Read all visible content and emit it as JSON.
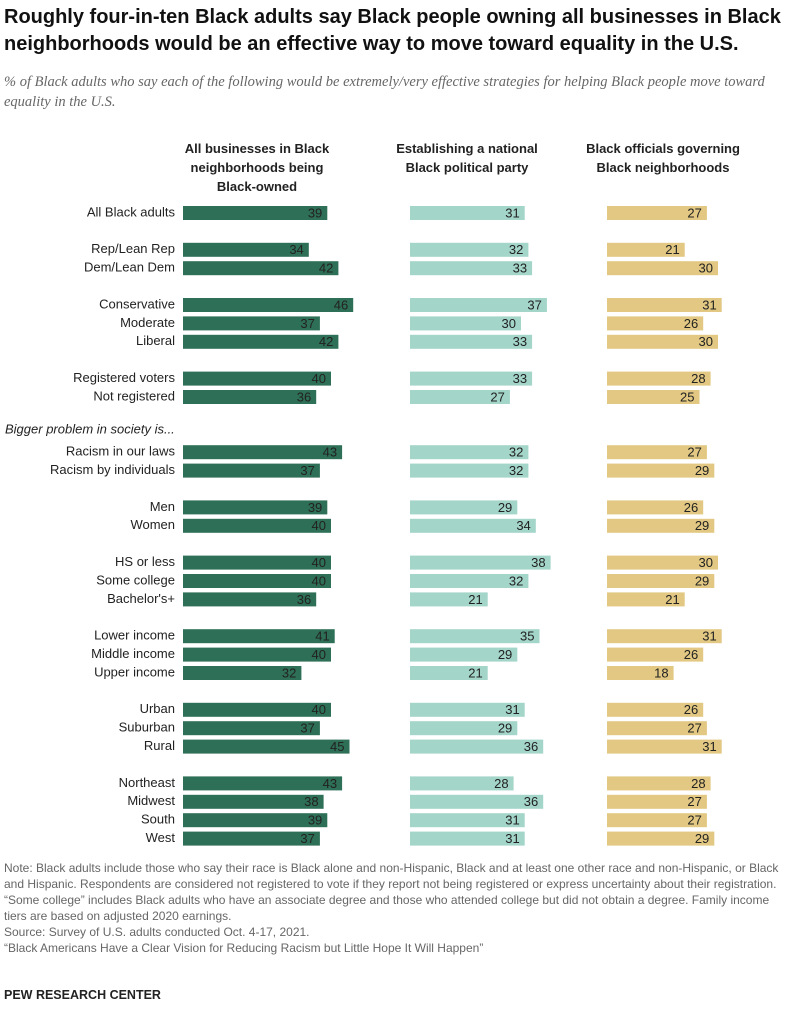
{
  "chart_data": {
    "type": "bar",
    "orientation": "horizontal",
    "title": "Roughly four-in-ten Black adults say Black people owning all businesses in Black neighborhoods would be an effective way to move toward equality in the U.S.",
    "subtitle": "% of Black adults who say each of the following would be extremely/very effective strategies for helping Black people move toward equality in the U.S.",
    "annotation": "Bigger problem in society is...",
    "categories": [
      "All Black adults",
      "Rep/Lean Rep",
      "Dem/Lean Dem",
      "Conservative",
      "Moderate",
      "Liberal",
      "Registered voters",
      "Not registered",
      "Racism in our laws",
      "Racism by individuals",
      "Men",
      "Women",
      "HS or less",
      "Some college",
      "Bachelor's+",
      "Lower income",
      "Middle income",
      "Upper income",
      "Urban",
      "Suburban",
      "Rural",
      "Northeast",
      "Midwest",
      "South",
      "West"
    ],
    "series": [
      {
        "name": "All businesses in Black neighborhoods being Black-owned",
        "color": "#2e6f57",
        "values": [
          39,
          34,
          42,
          46,
          37,
          42,
          40,
          36,
          43,
          37,
          39,
          40,
          40,
          40,
          36,
          41,
          40,
          32,
          40,
          37,
          45,
          43,
          38,
          39,
          37
        ]
      },
      {
        "name": "Establishing a national Black political party",
        "color": "#a3d5c9",
        "values": [
          31,
          32,
          33,
          37,
          30,
          33,
          33,
          27,
          32,
          32,
          29,
          34,
          38,
          32,
          21,
          35,
          29,
          21,
          31,
          29,
          36,
          28,
          36,
          31,
          31
        ]
      },
      {
        "name": "Black officials governing Black neighborhoods",
        "color": "#e2c882",
        "values": [
          27,
          21,
          30,
          31,
          26,
          30,
          28,
          25,
          27,
          29,
          26,
          29,
          30,
          29,
          21,
          31,
          26,
          18,
          26,
          27,
          31,
          28,
          27,
          27,
          29
        ]
      }
    ],
    "note": "Note: Black adults include those who say their race is Black alone and non-Hispanic, Black and at least one other race and non-Hispanic, or Black and Hispanic. Respondents are considered not registered to vote if they report not being registered or express uncertainty about their registration. “Some college” includes Black adults who have an associate degree and those who attended college but did not obtain a degree. Family income tiers are based on adjusted 2020 earnings.",
    "source": "Source: Survey of U.S. adults conducted Oct. 4-17, 2021.",
    "report": "“Black Americans Have a Clear Vision for Reducing Racism but Little Hope It Will Happen”",
    "credit": "PEW RESEARCH CENTER"
  }
}
